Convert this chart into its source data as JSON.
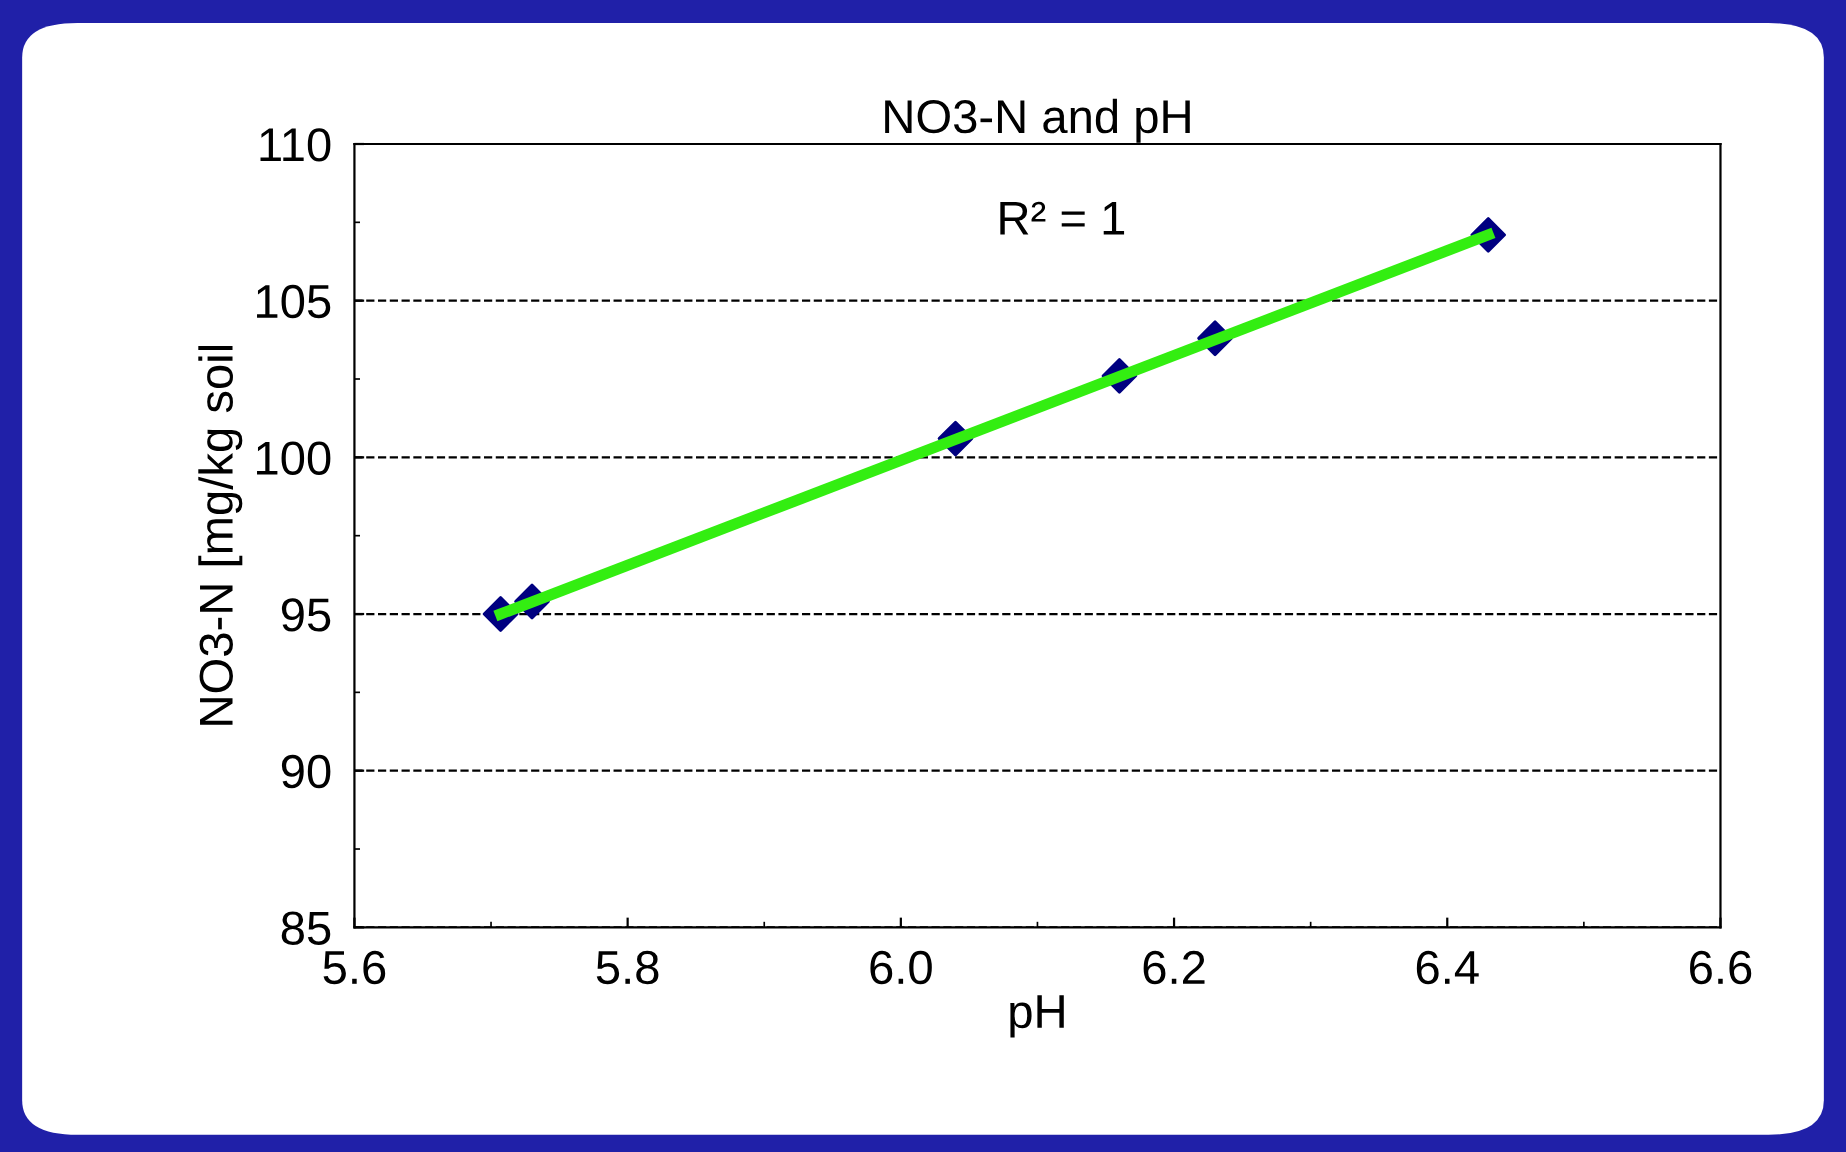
{
  "chart_data": {
    "type": "scatter",
    "title": "NO3-N and pH",
    "xlabel": "pH",
    "ylabel": "NO3-N [mg/kg soil",
    "series": [
      {
        "color": "#000080",
        "marker": "diamond",
        "x": [
          5.707,
          5.73,
          6.04,
          6.16,
          6.23,
          6.43
        ],
        "values": [
          95.0,
          95.4,
          100.6,
          102.6,
          103.8,
          107.1
        ]
      },
      {
        "type": "line",
        "color": "#33ee11",
        "marker": "none",
        "line_style": "solid",
        "x": [
          5.707,
          6.43
        ],
        "values": [
          95.0,
          107.1
        ]
      }
    ],
    "annotations": [
      "R² = 1"
    ],
    "xlim": [
      5.6,
      6.6
    ],
    "xticks": [
      {
        "value": 5.6,
        "label": "5.6"
      },
      {
        "value": 5.8,
        "label": "5.8"
      },
      {
        "value": 6.0,
        "label": "6.0"
      },
      {
        "value": 6.2,
        "label": "6.2"
      },
      {
        "value": 6.4,
        "label": "6.4"
      },
      {
        "value": 6.6,
        "label": "6.6"
      }
    ],
    "ylim": [
      85,
      110
    ],
    "yticks": [
      85,
      90,
      95,
      100,
      105,
      110
    ],
    "grid": "y",
    "legend": false
  }
}
